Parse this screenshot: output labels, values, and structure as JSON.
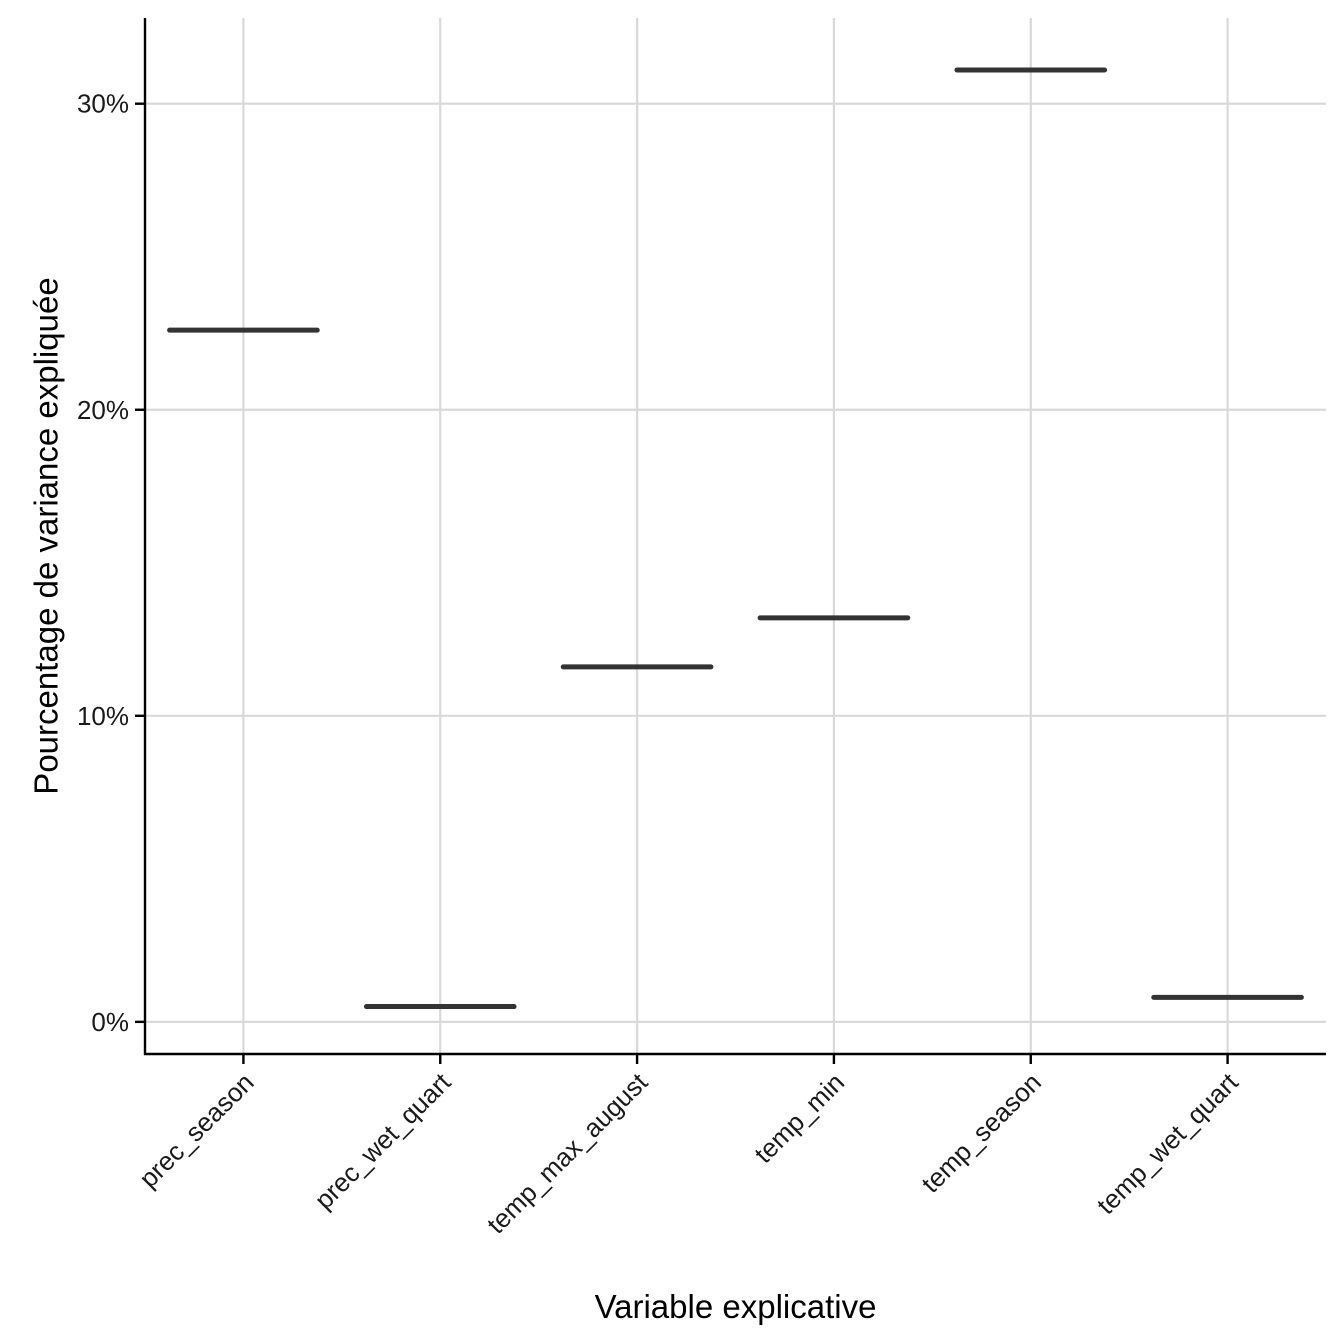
{
  "chart_data": {
    "type": "boxplot",
    "categories": [
      "prec_season",
      "prec_wet_quart",
      "temp_max_august",
      "temp_min",
      "temp_season",
      "temp_wet_quart"
    ],
    "values": [
      22.6,
      0.5,
      11.6,
      13.2,
      31.1,
      0.8
    ],
    "xlabel": "Variable explicative",
    "ylabel": "Pourcentage de variance expliquée",
    "yticks": [
      0,
      10,
      20,
      30
    ],
    "ytick_labels": [
      "0%",
      "10%",
      "20%",
      "30%"
    ],
    "ylim": [
      -1.05,
      32.8
    ],
    "grid": true,
    "colors": {
      "mark": "#333333",
      "grid": "#d9d9d9",
      "axis": "#000000"
    }
  }
}
